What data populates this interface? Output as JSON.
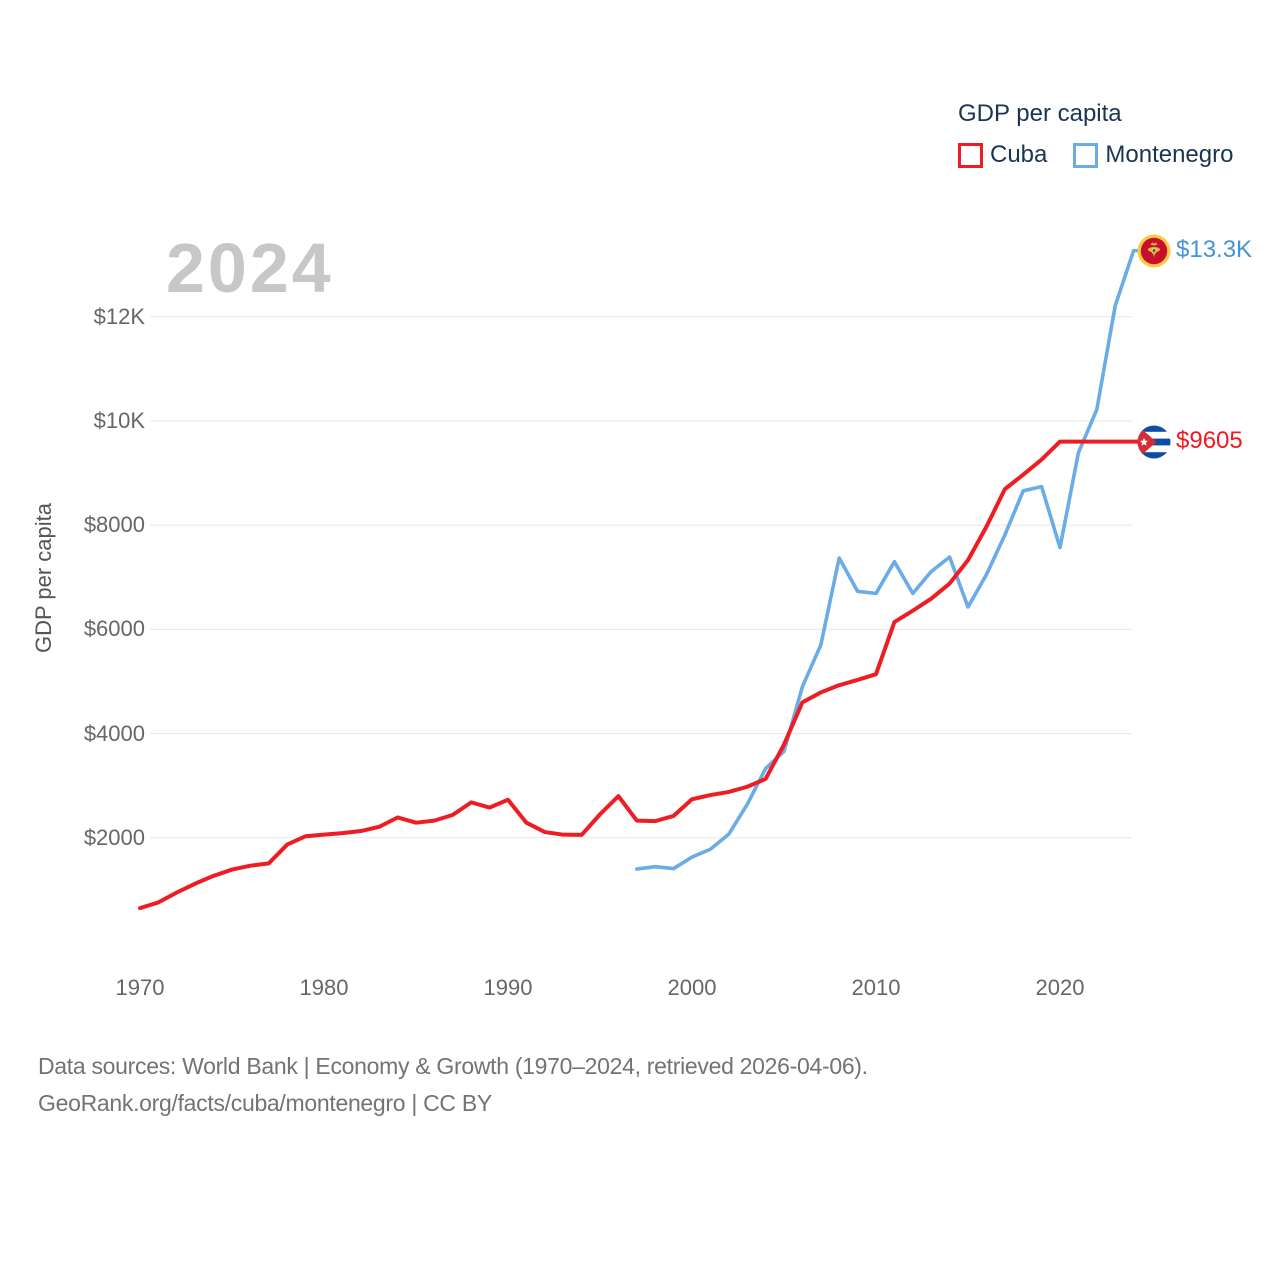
{
  "legend": {
    "title": "GDP per capita",
    "items": [
      {
        "label": "Cuba",
        "color": "#ee1c23"
      },
      {
        "label": "Montenegro",
        "color": "#6aace6"
      }
    ]
  },
  "watermark": "2024",
  "y_axis": {
    "title": "GDP per capita",
    "ticks": [
      {
        "label": "$2000",
        "value": 2000
      },
      {
        "label": "$4000",
        "value": 4000
      },
      {
        "label": "$6000",
        "value": 6000
      },
      {
        "label": "$8000",
        "value": 8000
      },
      {
        "label": "$10K",
        "value": 10000
      },
      {
        "label": "$12K",
        "value": 12000
      }
    ]
  },
  "x_axis": {
    "ticks": [
      1970,
      1980,
      1990,
      2000,
      2010,
      2020
    ]
  },
  "end_labels": {
    "montenegro": {
      "text": "$13.3K",
      "color": "#4593d4",
      "flag": "montenegro-flag-icon"
    },
    "cuba": {
      "text": "$9605",
      "color": "#f2181f",
      "flag": "cuba-flag-icon"
    }
  },
  "footer": {
    "line1": "Data sources: World Bank | Economy & Growth (1970–2024, retrieved 2026-04-06).",
    "line2": "GeoRank.org/facts/cuba/montenegro | CC BY"
  },
  "chart_data": {
    "type": "line",
    "title": "GDP per capita",
    "xlabel": "",
    "ylabel": "GDP per capita",
    "x_range": [
      1970,
      2024
    ],
    "ylim": [
      0,
      13500
    ],
    "grid": "horizontal",
    "legend_position": "top-right",
    "series": [
      {
        "id": "montenegro",
        "name": "Montenegro",
        "color": "#6aace6",
        "start_year": 1997,
        "end_value_label": "$13.3K",
        "values": [
          1400,
          1445,
          1410,
          1630,
          1780,
          2070,
          2640,
          3330,
          3660,
          4900,
          5700,
          7370,
          6730,
          6690,
          7300,
          6690,
          7110,
          7390,
          6430,
          7050,
          7810,
          8660,
          8740,
          7570,
          9390,
          10220,
          12210,
          13270
        ]
      },
      {
        "id": "cuba",
        "name": "Cuba",
        "color": "#ee1c23",
        "start_year": 1970,
        "end_value_label": "$9605",
        "values": [
          650,
          760,
          950,
          1120,
          1270,
          1390,
          1465,
          1510,
          1870,
          2030,
          2060,
          2090,
          2130,
          2210,
          2390,
          2290,
          2330,
          2440,
          2680,
          2580,
          2730,
          2290,
          2110,
          2060,
          2055,
          2450,
          2800,
          2330,
          2320,
          2420,
          2740,
          2820,
          2880,
          2980,
          3130,
          3790,
          4600,
          4790,
          4930,
          5030,
          5140,
          6140,
          6360,
          6590,
          6880,
          7330,
          7970,
          8690,
          8970,
          9260,
          9605,
          9605,
          9605,
          9605,
          9605
        ]
      }
    ]
  }
}
